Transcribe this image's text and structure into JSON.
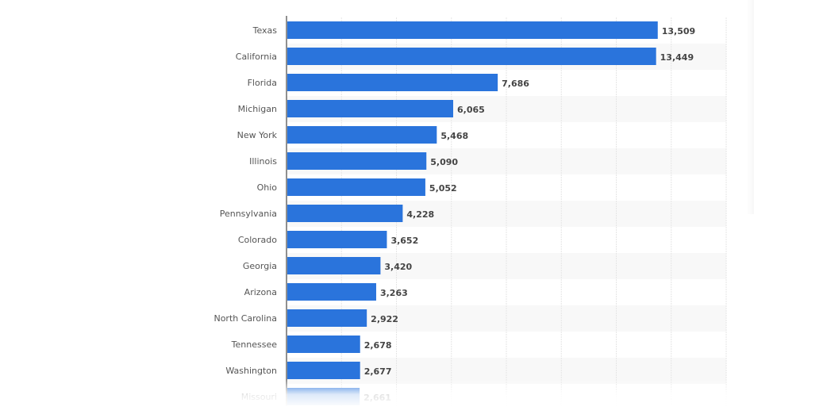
{
  "chart_data": {
    "type": "bar",
    "orientation": "horizontal",
    "categories": [
      "Texas",
      "California",
      "Florida",
      "Michigan",
      "New York",
      "Illinois",
      "Ohio",
      "Pennsylvania",
      "Colorado",
      "Georgia",
      "Arizona",
      "North Carolina",
      "Tennessee",
      "Washington",
      "Missouri"
    ],
    "values": [
      13509,
      13449,
      7686,
      6065,
      5468,
      5090,
      5052,
      4228,
      3652,
      3420,
      3263,
      2922,
      2678,
      2677,
      2661
    ],
    "value_labels": [
      "13,509",
      "13,449",
      "7,686",
      "6,065",
      "5,468",
      "5,090",
      "5,052",
      "4,228",
      "3,652",
      "3,420",
      "3,263",
      "2,922",
      "2,678",
      "2,677",
      "2,661"
    ],
    "title": "",
    "xlabel": "",
    "ylabel": "",
    "xlim": [
      0,
      16000
    ],
    "grid": true,
    "bar_color": "#2a74dc"
  }
}
